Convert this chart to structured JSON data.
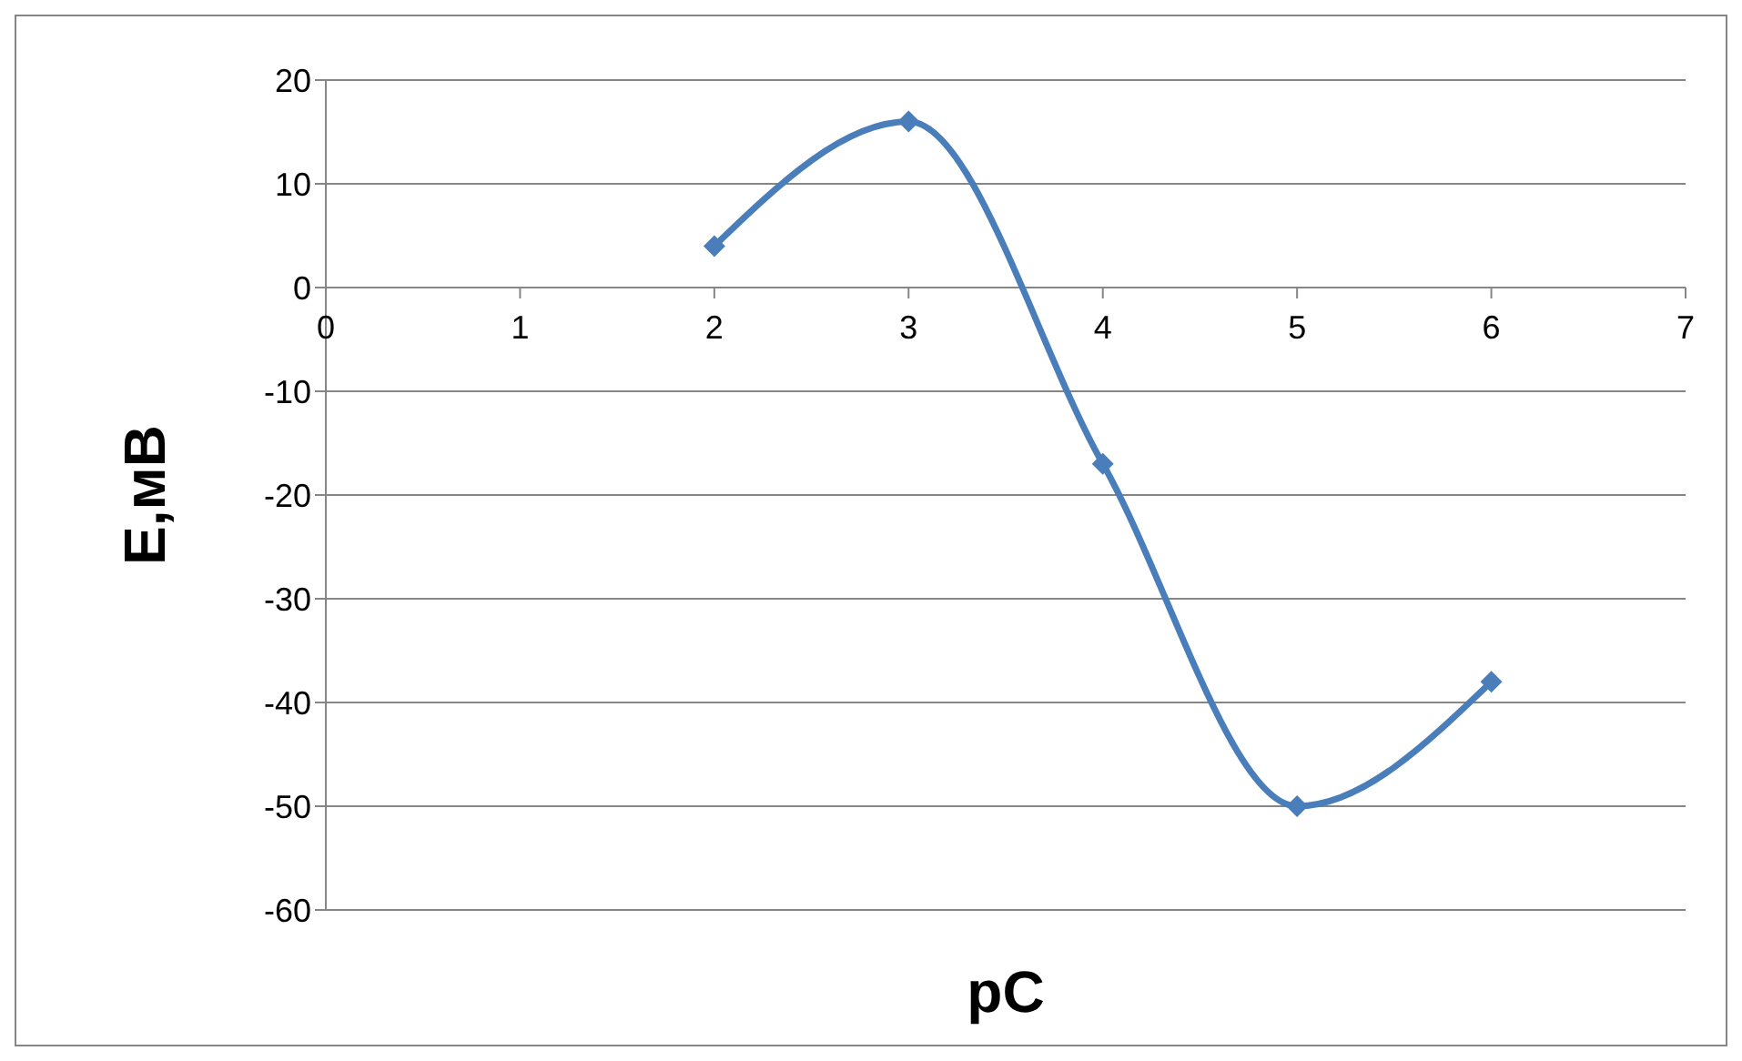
{
  "chart_data": {
    "type": "line",
    "xlabel": "pC",
    "ylabel": "E,мВ",
    "x": [
      2,
      3,
      4,
      5,
      6
    ],
    "series": [
      {
        "color": "#4a7ebb",
        "values": [
          4,
          16,
          -17,
          -50,
          -38
        ]
      }
    ],
    "xlim": [
      0,
      7
    ],
    "xticks": [
      0,
      1,
      2,
      3,
      4,
      5,
      6,
      7
    ],
    "ylim": [
      -60,
      20
    ],
    "yticks": [
      -60,
      -50,
      -40,
      -30,
      -20,
      -10,
      0,
      10,
      20
    ],
    "grid": "y",
    "legend": false,
    "marker": "diamond",
    "line_style": "solid"
  }
}
